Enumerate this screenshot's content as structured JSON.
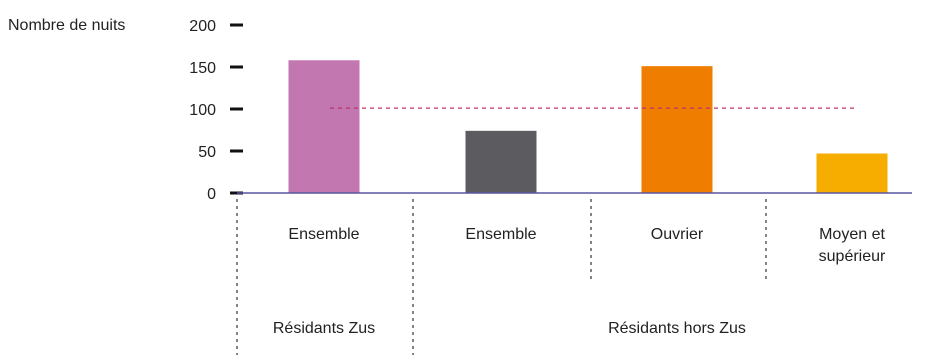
{
  "chart_data": {
    "type": "bar",
    "ylabel": "Nombre de nuits",
    "ylim": [
      0,
      200
    ],
    "yticks": [
      0,
      50,
      100,
      150,
      200
    ],
    "reference_line": {
      "value": 101,
      "color": "#c0306e",
      "style": "dashed"
    },
    "bars": [
      {
        "label": [
          "Ensemble"
        ],
        "group": "Résidants Zus",
        "value": 158,
        "color": "#c277b0"
      },
      {
        "label": [
          "Ensemble"
        ],
        "group": "Résidants hors Zus",
        "value": 74,
        "color": "#5c5b5f"
      },
      {
        "label": [
          "Ouvrier"
        ],
        "group": "Résidants hors Zus",
        "value": 151,
        "color": "#ef7d00"
      },
      {
        "label": [
          "Moyen et",
          "supérieur"
        ],
        "group": "Résidants hors Zus",
        "value": 47,
        "color": "#f7ac00"
      }
    ],
    "groups": [
      {
        "name": "Résidants Zus"
      },
      {
        "name": "Résidants hors Zus"
      }
    ],
    "axis_color": "#5a56a0"
  }
}
